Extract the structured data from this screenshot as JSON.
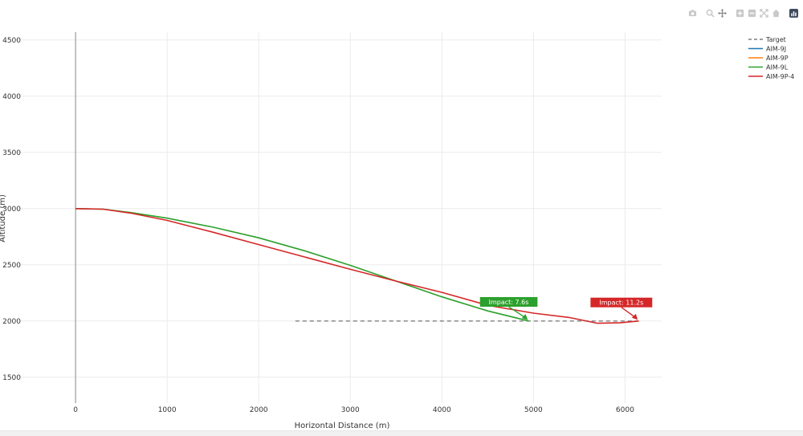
{
  "modebar": {
    "icons": [
      "camera-icon",
      "zoom-icon",
      "pan-icon",
      "zoom-in-icon",
      "zoom-out-icon",
      "autoscale-icon",
      "home-icon",
      "plotly-logo-icon"
    ]
  },
  "chart_data": {
    "type": "line",
    "xlabel": "Horizontal Distance (m)",
    "ylabel": "Altitude (m)",
    "xlim": [
      -650,
      6400
    ],
    "ylim": [
      1270,
      4570
    ],
    "xticks": [
      0,
      1000,
      2000,
      3000,
      4000,
      5000,
      6000
    ],
    "yticks": [
      1500,
      2000,
      2500,
      3000,
      3500,
      4000,
      4500
    ],
    "grid": true,
    "legend_position": "top-right",
    "series": [
      {
        "name": "Target",
        "color": "#7f7f7f",
        "dash": "dash",
        "x": [
          2400,
          6150
        ],
        "y": [
          2000,
          2000
        ]
      },
      {
        "name": "AIM-9J",
        "color": "#1f77b4",
        "dash": "solid",
        "x": [],
        "y": []
      },
      {
        "name": "AIM-9P",
        "color": "#ff7f0e",
        "dash": "solid",
        "x": [],
        "y": []
      },
      {
        "name": "AIM-9L",
        "color": "#2ca02c",
        "dash": "solid",
        "x": [
          0,
          300,
          600,
          1000,
          1500,
          2000,
          2500,
          3000,
          3500,
          4000,
          4500,
          4950
        ],
        "y": [
          3000,
          2995,
          2965,
          2915,
          2835,
          2740,
          2625,
          2495,
          2355,
          2215,
          2090,
          2000
        ]
      },
      {
        "name": "AIM-9P-4",
        "color": "#d62728",
        "dash": "solid",
        "x": [
          0,
          300,
          600,
          1000,
          1500,
          2000,
          2500,
          3000,
          3500,
          4000,
          4500,
          5000,
          5400,
          5700,
          5950,
          6150
        ],
        "y": [
          3000,
          2995,
          2960,
          2895,
          2790,
          2680,
          2570,
          2460,
          2355,
          2255,
          2140,
          2070,
          2030,
          1980,
          1985,
          2000
        ]
      }
    ],
    "annotations": [
      {
        "text": "Impact: 7.6s",
        "color": "#2ca02c",
        "x": 4950,
        "y": 2000,
        "label_x": 4730,
        "label_y": 2170
      },
      {
        "text": "Impact: 11.2s",
        "color": "#d62728",
        "x": 6150,
        "y": 2000,
        "label_x": 5960,
        "label_y": 2165
      }
    ]
  }
}
